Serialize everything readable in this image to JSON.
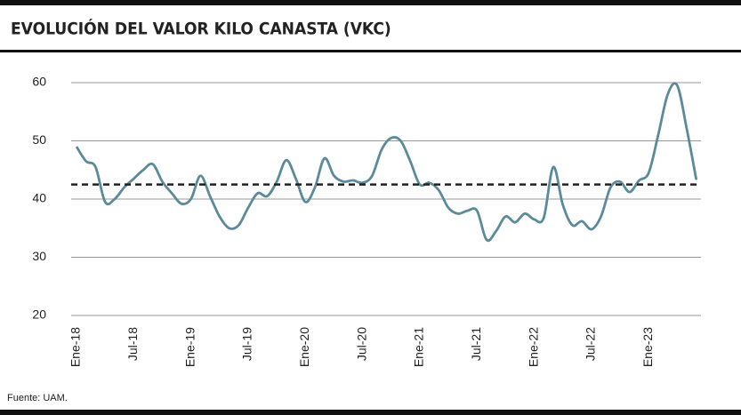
{
  "chart_data": {
    "type": "line",
    "title": "EVOLUCIÓN DEL VALOR KILO CANASTA (VKC)",
    "source": "Fuente: UAM.",
    "categories": [
      "Ene-18",
      null,
      null,
      null,
      null,
      null,
      "Jul-18",
      null,
      null,
      null,
      null,
      null,
      "Ene-19",
      null,
      null,
      null,
      null,
      null,
      "Jul-19",
      null,
      null,
      null,
      null,
      null,
      "Ene-20",
      null,
      null,
      null,
      null,
      null,
      "Jul-20",
      null,
      null,
      null,
      null,
      null,
      "Ene-21",
      null,
      null,
      null,
      null,
      null,
      "Jul-21",
      null,
      null,
      null,
      null,
      null,
      "Ene-22",
      null,
      null,
      null,
      null,
      null,
      "Jul-22",
      null,
      null,
      null,
      null,
      null,
      "Ene-23",
      null,
      null,
      null,
      null,
      null
    ],
    "values": [
      49,
      46.5,
      45.5,
      39.5,
      40,
      42,
      43.5,
      45,
      46,
      43,
      41,
      39.2,
      40,
      44,
      40.5,
      37,
      35,
      35.5,
      38.5,
      41,
      40.5,
      43,
      46.7,
      43.5,
      39.5,
      42,
      47,
      44,
      43,
      43.2,
      42.8,
      44,
      48.5,
      50.5,
      50,
      46.5,
      42.5,
      42.8,
      41.5,
      38.5,
      37.5,
      38,
      38,
      33,
      34.5,
      37,
      36,
      37.5,
      36.5,
      36.8,
      45.5,
      39,
      35.5,
      36.2,
      34.8,
      37,
      42,
      43,
      41.2,
      43.2,
      44.5,
      51,
      58,
      59.5,
      52,
      43.3
    ],
    "color": "#5b8a99",
    "reference_line": 42.5,
    "ylim": [
      20,
      60
    ],
    "yticks": [
      20,
      30,
      40,
      50,
      60
    ],
    "grid": true
  }
}
